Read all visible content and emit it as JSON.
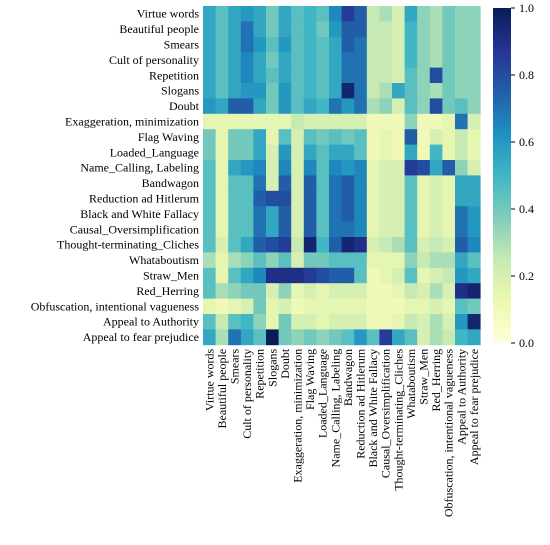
{
  "chart_data": {
    "type": "heatmap",
    "title": "",
    "xlabel": "",
    "ylabel": "",
    "rows": [
      "Virtue words",
      "Beautiful people",
      "Smears",
      "Cult of personality",
      "Repetition",
      "Slogans",
      "Doubt",
      "Exaggeration, minimization",
      "Flag Waving",
      "Loaded_Language",
      "Name_Calling, Labeling",
      "Bandwagon",
      "Reduction ad Hitlerum",
      "Black and White Fallacy",
      "Causal_Oversimplification",
      "Thought-terminating_Cliches",
      "Whataboutism",
      "Straw_Men",
      "Red_Herring",
      "Obfuscation, intentional vagueness",
      "Appeal to Authority",
      "Appeal to fear prejudice"
    ],
    "columns": [
      "Virtue words",
      "Beautiful people",
      "Smears",
      "Cult of personality",
      "Repetition",
      "Slogans",
      "Doubt",
      "Exaggeration, minimization",
      "Flag Waving",
      "Loaded_Language",
      "Name_Calling, Labeling",
      "Bandwagon",
      "Reduction ad Hitlerum",
      "Black and White Fallacy",
      "Causal_Oversimplification",
      "Thought-terminating_Cliches",
      "Whataboutism",
      "Straw_Men",
      "Red_Herring",
      "Obfuscation, intentional vagueness",
      "Appeal to Authority",
      "Appeal to fear prejudice"
    ],
    "values": [
      [
        0.55,
        0.45,
        0.55,
        0.6,
        0.55,
        0.4,
        0.55,
        0.45,
        0.5,
        0.45,
        0.65,
        0.85,
        0.75,
        0.25,
        0.3,
        0.2,
        0.55,
        0.35,
        0.3,
        0.4,
        0.35,
        0.35
      ],
      [
        0.55,
        0.45,
        0.55,
        0.7,
        0.55,
        0.4,
        0.55,
        0.45,
        0.5,
        0.4,
        0.6,
        0.75,
        0.75,
        0.25,
        0.25,
        0.2,
        0.5,
        0.35,
        0.3,
        0.4,
        0.35,
        0.35
      ],
      [
        0.55,
        0.45,
        0.55,
        0.7,
        0.6,
        0.45,
        0.6,
        0.45,
        0.5,
        0.45,
        0.55,
        0.75,
        0.7,
        0.25,
        0.25,
        0.2,
        0.5,
        0.35,
        0.3,
        0.4,
        0.35,
        0.35
      ],
      [
        0.55,
        0.45,
        0.55,
        0.65,
        0.55,
        0.4,
        0.55,
        0.45,
        0.5,
        0.45,
        0.55,
        0.7,
        0.7,
        0.25,
        0.25,
        0.2,
        0.5,
        0.35,
        0.3,
        0.4,
        0.35,
        0.35
      ],
      [
        0.55,
        0.45,
        0.55,
        0.65,
        0.55,
        0.45,
        0.55,
        0.45,
        0.5,
        0.45,
        0.55,
        0.7,
        0.7,
        0.25,
        0.25,
        0.2,
        0.45,
        0.35,
        0.8,
        0.4,
        0.35,
        0.35
      ],
      [
        0.55,
        0.45,
        0.55,
        0.6,
        0.6,
        0.4,
        0.6,
        0.45,
        0.5,
        0.45,
        0.55,
        0.95,
        0.7,
        0.25,
        0.3,
        0.55,
        0.45,
        0.35,
        0.3,
        0.4,
        0.35,
        0.35
      ],
      [
        0.6,
        0.55,
        0.75,
        0.75,
        0.55,
        0.4,
        0.6,
        0.45,
        0.55,
        0.5,
        0.7,
        0.6,
        0.7,
        0.3,
        0.35,
        0.2,
        0.45,
        0.35,
        0.8,
        0.4,
        0.45,
        0.35
      ],
      [
        0.15,
        0.15,
        0.15,
        0.15,
        0.15,
        0.15,
        0.15,
        0.25,
        0.2,
        0.2,
        0.2,
        0.2,
        0.2,
        0.1,
        0.1,
        0.1,
        0.35,
        0.1,
        0.1,
        0.15,
        0.7,
        0.2
      ],
      [
        0.4,
        0.15,
        0.4,
        0.4,
        0.55,
        0.15,
        0.45,
        0.2,
        0.45,
        0.4,
        0.45,
        0.4,
        0.45,
        0.1,
        0.15,
        0.1,
        0.75,
        0.1,
        0.2,
        0.15,
        0.25,
        0.15
      ],
      [
        0.4,
        0.15,
        0.4,
        0.4,
        0.55,
        0.2,
        0.6,
        0.2,
        0.55,
        0.45,
        0.55,
        0.55,
        0.45,
        0.1,
        0.15,
        0.1,
        0.55,
        0.1,
        0.5,
        0.15,
        0.25,
        0.15
      ],
      [
        0.45,
        0.15,
        0.55,
        0.6,
        0.65,
        0.2,
        0.65,
        0.2,
        0.65,
        0.45,
        0.65,
        0.6,
        0.65,
        0.15,
        0.2,
        0.2,
        0.85,
        0.8,
        0.55,
        0.75,
        0.35,
        0.2
      ],
      [
        0.45,
        0.15,
        0.45,
        0.45,
        0.7,
        0.2,
        0.75,
        0.2,
        0.75,
        0.45,
        0.7,
        0.75,
        0.65,
        0.15,
        0.2,
        0.2,
        0.45,
        0.15,
        0.2,
        0.15,
        0.55,
        0.55
      ],
      [
        0.45,
        0.15,
        0.45,
        0.45,
        0.75,
        0.8,
        0.8,
        0.2,
        0.75,
        0.45,
        0.7,
        0.75,
        0.65,
        0.15,
        0.2,
        0.2,
        0.45,
        0.15,
        0.2,
        0.15,
        0.55,
        0.55
      ],
      [
        0.45,
        0.15,
        0.45,
        0.45,
        0.7,
        0.55,
        0.75,
        0.2,
        0.75,
        0.45,
        0.7,
        0.75,
        0.65,
        0.15,
        0.2,
        0.2,
        0.45,
        0.15,
        0.2,
        0.15,
        0.7,
        0.6
      ],
      [
        0.45,
        0.15,
        0.45,
        0.45,
        0.7,
        0.55,
        0.75,
        0.2,
        0.75,
        0.45,
        0.7,
        0.7,
        0.65,
        0.15,
        0.2,
        0.2,
        0.45,
        0.15,
        0.2,
        0.15,
        0.7,
        0.6
      ],
      [
        0.45,
        0.2,
        0.45,
        0.55,
        0.75,
        0.8,
        0.85,
        0.25,
        0.95,
        0.5,
        0.75,
        0.95,
        0.9,
        0.2,
        0.25,
        0.3,
        0.45,
        0.2,
        0.25,
        0.2,
        0.75,
        0.65
      ],
      [
        0.3,
        0.15,
        0.3,
        0.35,
        0.45,
        0.35,
        0.45,
        0.2,
        0.4,
        0.4,
        0.45,
        0.45,
        0.45,
        0.15,
        0.15,
        0.15,
        0.35,
        0.25,
        0.3,
        0.3,
        0.55,
        0.45
      ],
      [
        0.45,
        0.15,
        0.45,
        0.55,
        0.65,
        0.9,
        0.9,
        0.9,
        0.85,
        0.8,
        0.75,
        0.75,
        0.45,
        0.1,
        0.15,
        0.2,
        0.45,
        0.15,
        0.2,
        0.25,
        0.6,
        0.55
      ],
      [
        0.45,
        0.3,
        0.35,
        0.4,
        0.4,
        0.2,
        0.35,
        0.15,
        0.2,
        0.15,
        0.2,
        0.2,
        0.2,
        0.1,
        0.1,
        0.15,
        0.25,
        0.2,
        0.3,
        0.2,
        0.9,
        0.95
      ],
      [
        0.15,
        0.1,
        0.15,
        0.2,
        0.4,
        0.15,
        0.2,
        0.1,
        0.15,
        0.15,
        0.15,
        0.15,
        0.15,
        0.1,
        0.1,
        0.1,
        0.15,
        0.15,
        0.2,
        0.15,
        0.45,
        0.4
      ],
      [
        0.45,
        0.25,
        0.45,
        0.5,
        0.35,
        0.15,
        0.4,
        0.2,
        0.2,
        0.15,
        0.2,
        0.2,
        0.2,
        0.1,
        0.1,
        0.15,
        0.25,
        0.2,
        0.3,
        0.2,
        0.6,
        0.95
      ],
      [
        0.55,
        0.3,
        0.7,
        0.55,
        0.45,
        1.0,
        0.4,
        0.35,
        0.4,
        0.35,
        0.4,
        0.45,
        0.6,
        0.45,
        0.85,
        0.55,
        0.45,
        0.2,
        0.3,
        0.25,
        0.5,
        0.55
      ]
    ],
    "vmin": 0.0,
    "vmax": 1.0,
    "colormap": "YlGnBu",
    "colorbar_ticks": [
      "0.0",
      "0.2",
      "0.4",
      "0.6",
      "0.8",
      "1.0"
    ]
  }
}
